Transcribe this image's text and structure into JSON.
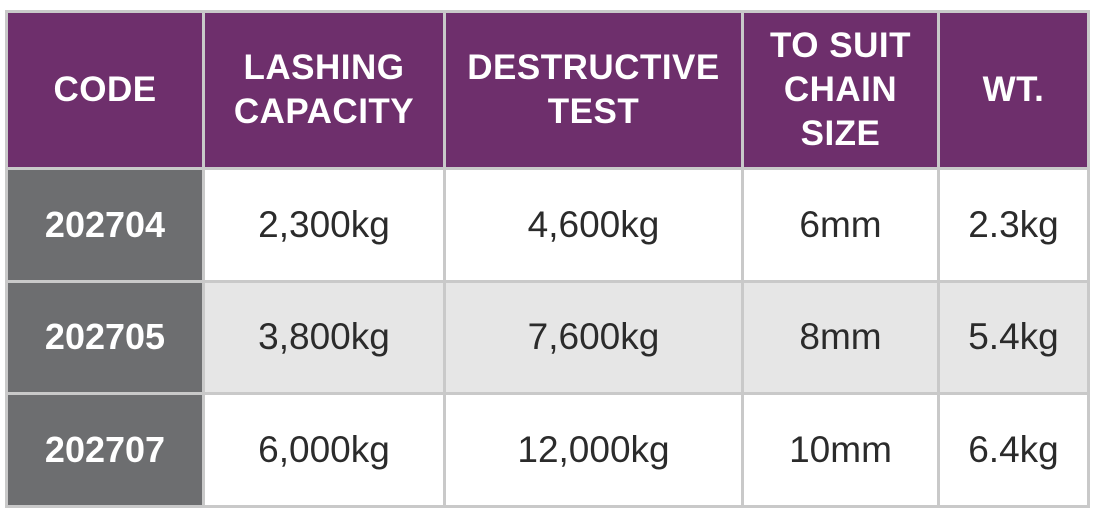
{
  "table": {
    "header": [
      "CODE",
      "LASHING CAPACITY",
      "DESTRUCTIVE TEST",
      "TO SUIT CHAIN SIZE",
      "WT."
    ],
    "rows": [
      [
        "202704",
        "2,300kg",
        "4,600kg",
        "6mm",
        "2.3kg"
      ],
      [
        "202705",
        "3,800kg",
        "7,600kg",
        "8mm",
        "5.4kg"
      ],
      [
        "202707",
        "6,000kg",
        "12,000kg",
        "10mm",
        "6.4kg"
      ]
    ]
  }
}
